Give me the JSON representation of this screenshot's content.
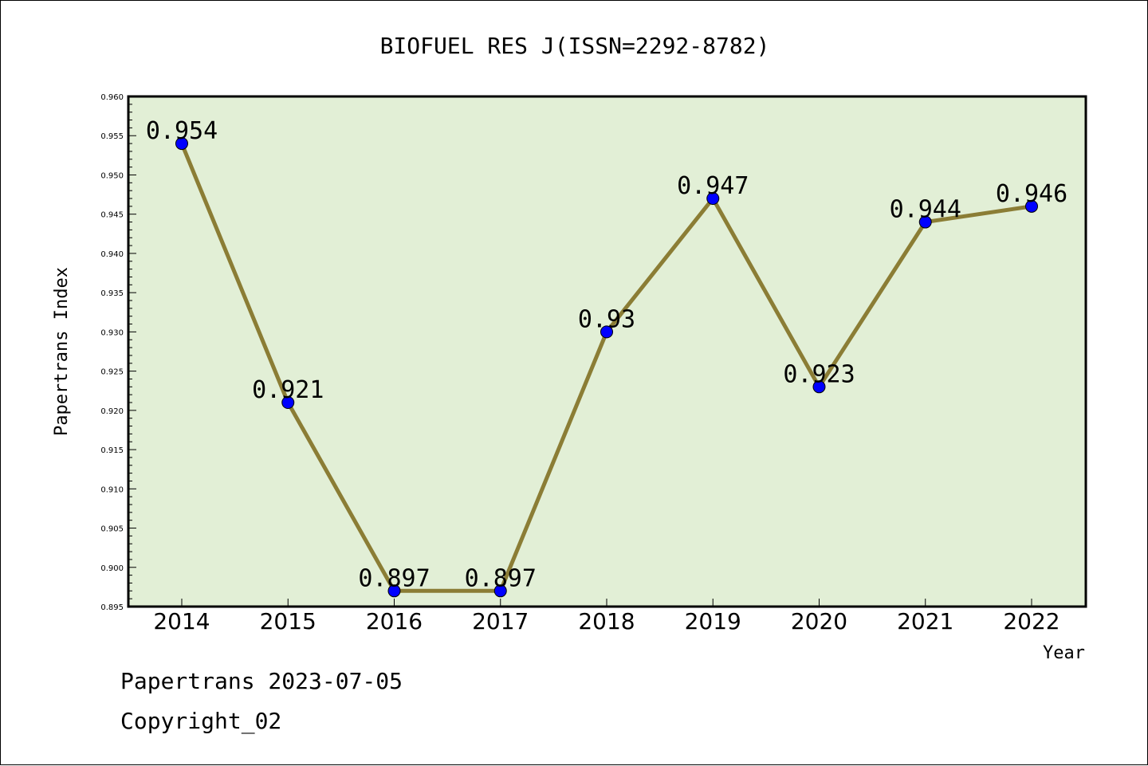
{
  "chart_data": {
    "type": "line",
    "title": "BIOFUEL RES J(ISSN=2292-8782)",
    "xlabel": "Year",
    "ylabel": "Papertrans Index",
    "categories": [
      "2014",
      "2015",
      "2016",
      "2017",
      "2018",
      "2019",
      "2020",
      "2021",
      "2022"
    ],
    "values": [
      0.954,
      0.921,
      0.897,
      0.897,
      0.93,
      0.947,
      0.923,
      0.944,
      0.946
    ],
    "data_labels": [
      "0.954",
      "0.921",
      "0.897",
      "0.897",
      "0.93",
      "0.947",
      "0.923",
      "0.944",
      "0.946"
    ],
    "ylim": [
      0.895,
      0.96
    ],
    "yticks": [
      "0.895",
      "0.900",
      "0.905",
      "0.910",
      "0.915",
      "0.920",
      "0.925",
      "0.930",
      "0.935",
      "0.940",
      "0.945",
      "0.950",
      "0.955",
      "0.960"
    ],
    "grid": false,
    "colors": {
      "plot_background": "#e2efd6",
      "line": "#8b7d35",
      "marker": "#0000ff"
    }
  },
  "footer": {
    "line1": "Papertrans 2023-07-05",
    "line2": "Copyright_02"
  }
}
